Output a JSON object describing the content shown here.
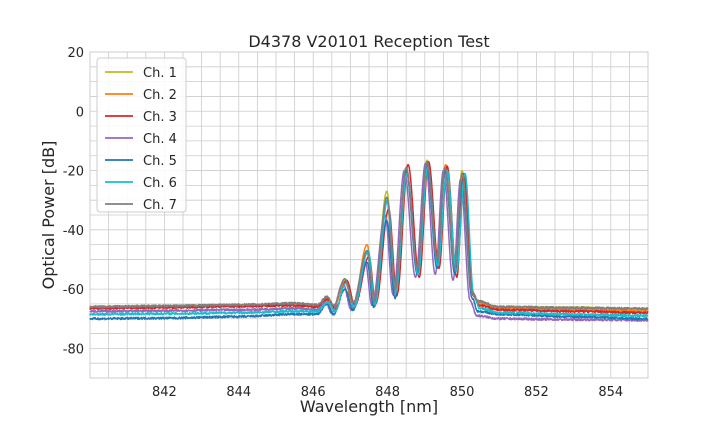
{
  "chart_data": {
    "type": "line",
    "title": "D4378 V20101 Reception Test",
    "xlabel": "Wavelength [nm]",
    "ylabel": "Optical Power [dB]",
    "xlim": [
      840,
      855
    ],
    "ylim": [
      -90,
      20
    ],
    "xticks": [
      842,
      844,
      846,
      848,
      850,
      852,
      854
    ],
    "yticks": [
      -80,
      -60,
      -40,
      -20,
      0,
      20
    ],
    "grid": true,
    "minor_grid_step": {
      "x": 0.5,
      "y": 5
    },
    "legend": "top-left",
    "series": [
      {
        "name": "Ch. 1",
        "color": "#bcbd22",
        "points": [
          [
            840,
            -66
          ],
          [
            842,
            -65.8
          ],
          [
            844,
            -65.5
          ],
          [
            845.5,
            -65
          ],
          [
            846.1,
            -65.5
          ],
          [
            846.37,
            -63
          ],
          [
            846.55,
            -66
          ],
          [
            846.85,
            -57
          ],
          [
            847.07,
            -65
          ],
          [
            847.45,
            -48
          ],
          [
            847.63,
            -64.5
          ],
          [
            847.98,
            -27
          ],
          [
            848.2,
            -61
          ],
          [
            848.5,
            -20
          ],
          [
            848.8,
            -54
          ],
          [
            849.06,
            -16.5
          ],
          [
            849.33,
            -51
          ],
          [
            849.54,
            -19
          ],
          [
            849.81,
            -54.7
          ],
          [
            850.0,
            -20
          ],
          [
            850.27,
            -61.5
          ],
          [
            850.43,
            -64.5
          ],
          [
            851,
            -66
          ],
          [
            853,
            -66.3
          ],
          [
            855,
            -66.8
          ]
        ]
      },
      {
        "name": "Ch. 2",
        "color": "#ff7f0e",
        "points": [
          [
            840,
            -66.3
          ],
          [
            842,
            -66
          ],
          [
            844,
            -65.7
          ],
          [
            845.5,
            -65.2
          ],
          [
            846.1,
            -65.8
          ],
          [
            846.37,
            -63.5
          ],
          [
            846.55,
            -66.5
          ],
          [
            846.85,
            -57.5
          ],
          [
            847.07,
            -65.5
          ],
          [
            847.45,
            -45
          ],
          [
            847.63,
            -64
          ],
          [
            847.98,
            -30
          ],
          [
            848.2,
            -60
          ],
          [
            848.5,
            -19
          ],
          [
            848.8,
            -53
          ],
          [
            849.08,
            -17
          ],
          [
            849.33,
            -50
          ],
          [
            849.56,
            -18
          ],
          [
            849.82,
            -53
          ],
          [
            850.02,
            -21
          ],
          [
            850.28,
            -61
          ],
          [
            850.45,
            -65
          ],
          [
            851,
            -66.5
          ],
          [
            853,
            -67
          ],
          [
            855,
            -67.5
          ]
        ]
      },
      {
        "name": "Ch. 3",
        "color": "#d62728",
        "points": [
          [
            840,
            -66.5
          ],
          [
            842,
            -66.2
          ],
          [
            844,
            -65.8
          ],
          [
            845.5,
            -65.5
          ],
          [
            846.1,
            -66
          ],
          [
            846.4,
            -63.5
          ],
          [
            846.6,
            -66.5
          ],
          [
            846.9,
            -57
          ],
          [
            847.12,
            -65.5
          ],
          [
            847.5,
            -49
          ],
          [
            847.68,
            -65
          ],
          [
            848.03,
            -33
          ],
          [
            848.25,
            -62
          ],
          [
            848.55,
            -18
          ],
          [
            848.85,
            -56
          ],
          [
            849.1,
            -17
          ],
          [
            849.38,
            -53
          ],
          [
            849.6,
            -18.5
          ],
          [
            849.86,
            -56
          ],
          [
            850.05,
            -21
          ],
          [
            850.3,
            -62
          ],
          [
            850.47,
            -65.5
          ],
          [
            851,
            -67
          ],
          [
            853,
            -67.5
          ],
          [
            855,
            -68
          ]
        ]
      },
      {
        "name": "Ch. 4",
        "color": "#9467bd",
        "points": [
          [
            840,
            -67.5
          ],
          [
            842,
            -67.3
          ],
          [
            844,
            -67
          ],
          [
            845.5,
            -66.5
          ],
          [
            846.1,
            -67
          ],
          [
            846.33,
            -64.5
          ],
          [
            846.5,
            -68
          ],
          [
            846.8,
            -58
          ],
          [
            847.02,
            -67
          ],
          [
            847.4,
            -51
          ],
          [
            847.58,
            -65.5
          ],
          [
            847.93,
            -35
          ],
          [
            848.15,
            -62
          ],
          [
            848.45,
            -20
          ],
          [
            848.75,
            -56
          ],
          [
            849.02,
            -17.5
          ],
          [
            849.28,
            -55
          ],
          [
            849.5,
            -20
          ],
          [
            849.76,
            -57
          ],
          [
            849.96,
            -23
          ],
          [
            850.22,
            -64
          ],
          [
            850.4,
            -69
          ],
          [
            851,
            -70
          ],
          [
            853,
            -70.3
          ],
          [
            855,
            -70.5
          ]
        ]
      },
      {
        "name": "Ch. 5",
        "color": "#1f77b4",
        "points": [
          [
            840,
            -70
          ],
          [
            842,
            -69.8
          ],
          [
            844,
            -69.3
          ],
          [
            845.5,
            -68.5
          ],
          [
            846.1,
            -68.5
          ],
          [
            846.37,
            -65
          ],
          [
            846.55,
            -68.5
          ],
          [
            846.85,
            -60
          ],
          [
            847.07,
            -67
          ],
          [
            847.45,
            -51
          ],
          [
            847.63,
            -66
          ],
          [
            847.98,
            -37
          ],
          [
            848.2,
            -63
          ],
          [
            848.5,
            -20
          ],
          [
            848.8,
            -55
          ],
          [
            849.06,
            -19
          ],
          [
            849.33,
            -53
          ],
          [
            849.54,
            -20
          ],
          [
            849.81,
            -55
          ],
          [
            850.0,
            -24
          ],
          [
            850.27,
            -63
          ],
          [
            850.43,
            -67.5
          ],
          [
            851,
            -68.5
          ],
          [
            853,
            -69.3
          ],
          [
            855,
            -70
          ]
        ]
      },
      {
        "name": "Ch. 6",
        "color": "#17becf",
        "points": [
          [
            840,
            -68.5
          ],
          [
            842,
            -68.3
          ],
          [
            844,
            -68
          ],
          [
            845.5,
            -67.5
          ],
          [
            846.1,
            -67.5
          ],
          [
            846.4,
            -64.5
          ],
          [
            846.58,
            -67.5
          ],
          [
            846.88,
            -58
          ],
          [
            847.1,
            -66
          ],
          [
            847.48,
            -47
          ],
          [
            847.66,
            -65
          ],
          [
            848.0,
            -30
          ],
          [
            848.22,
            -61
          ],
          [
            848.52,
            -21
          ],
          [
            848.82,
            -55
          ],
          [
            849.08,
            -19
          ],
          [
            849.35,
            -52
          ],
          [
            849.6,
            -20
          ],
          [
            849.85,
            -54
          ],
          [
            850.08,
            -21
          ],
          [
            850.32,
            -62
          ],
          [
            850.48,
            -66.5
          ],
          [
            851,
            -68
          ],
          [
            853,
            -68.5
          ],
          [
            855,
            -69
          ]
        ]
      },
      {
        "name": "Ch. 7",
        "color": "#7f7f7f",
        "points": [
          [
            840,
            -66
          ],
          [
            842,
            -65.7
          ],
          [
            844,
            -65.3
          ],
          [
            845.5,
            -64.8
          ],
          [
            846.1,
            -65.3
          ],
          [
            846.37,
            -62.5
          ],
          [
            846.55,
            -65.5
          ],
          [
            846.85,
            -56.5
          ],
          [
            847.07,
            -64.5
          ],
          [
            847.45,
            -47
          ],
          [
            847.63,
            -64
          ],
          [
            847.98,
            -29
          ],
          [
            848.2,
            -60
          ],
          [
            848.5,
            -19
          ],
          [
            848.8,
            -53
          ],
          [
            849.06,
            -17
          ],
          [
            849.33,
            -50
          ],
          [
            849.54,
            -19
          ],
          [
            849.81,
            -53
          ],
          [
            850.0,
            -21
          ],
          [
            850.27,
            -61
          ],
          [
            850.43,
            -64
          ],
          [
            851,
            -66
          ],
          [
            853,
            -66.3
          ],
          [
            855,
            -66.6
          ]
        ]
      }
    ]
  }
}
